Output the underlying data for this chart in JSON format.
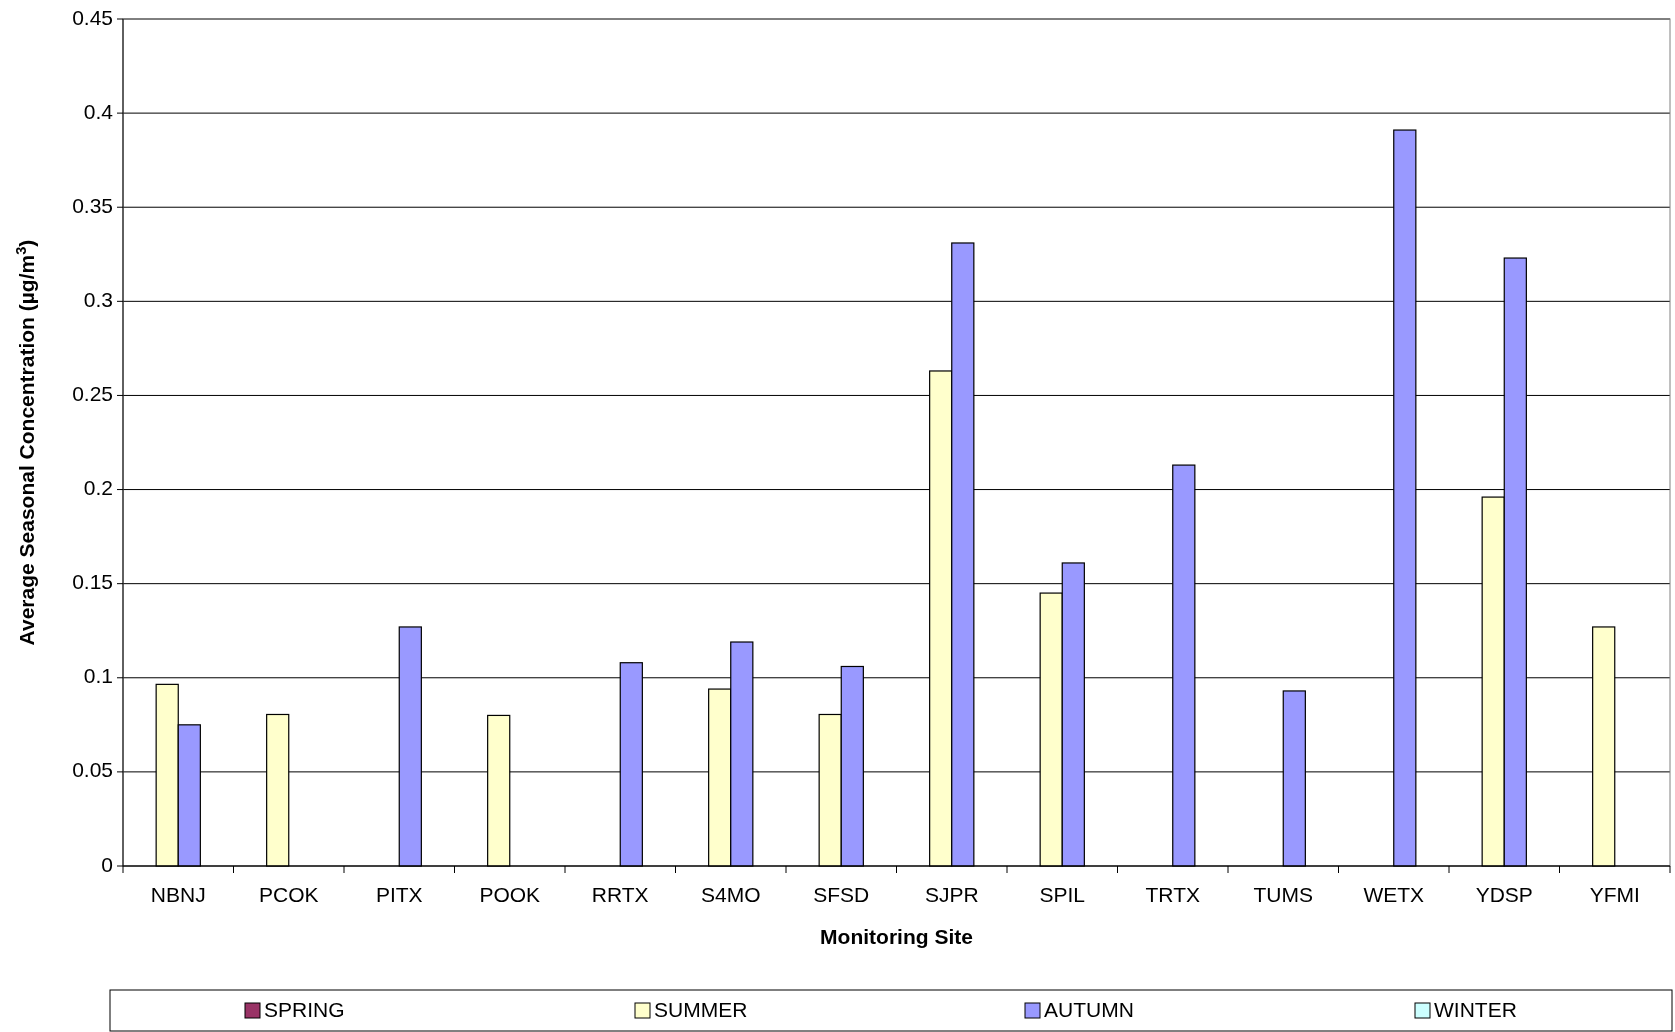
{
  "chart_data": {
    "type": "bar",
    "xlabel": "Monitoring Site",
    "ylabel": "Average Seasonal Concentration (µg/m$^{3}$)",
    "categories": [
      "NBNJ",
      "PCOK",
      "PITX",
      "POOK",
      "RRTX",
      "S4MO",
      "SFSD",
      "SJPR",
      "SPIL",
      "TRTX",
      "TUMS",
      "WETX",
      "YDSP",
      "YFMI"
    ],
    "series": [
      {
        "name": "SPRING",
        "color": "#993366",
        "values": [
          null,
          null,
          null,
          null,
          null,
          null,
          null,
          null,
          null,
          null,
          null,
          null,
          null,
          null
        ]
      },
      {
        "name": "SUMMER",
        "color": "#ffffcc",
        "values": [
          0.0965,
          0.0805,
          null,
          0.08,
          null,
          0.094,
          0.0805,
          0.263,
          0.145,
          null,
          null,
          null,
          0.196,
          0.127
        ]
      },
      {
        "name": "AUTUMN",
        "color": "#9999ff",
        "values": [
          0.075,
          null,
          0.127,
          null,
          0.108,
          0.119,
          0.106,
          0.331,
          0.161,
          0.213,
          0.093,
          0.391,
          0.323,
          null
        ]
      },
      {
        "name": "WINTER",
        "color": "#ccffff",
        "values": [
          null,
          null,
          null,
          null,
          null,
          null,
          null,
          null,
          null,
          null,
          null,
          null,
          null,
          null
        ]
      }
    ],
    "ylim": [
      0,
      0.45
    ],
    "yticks": [
      0,
      0.05,
      0.1,
      0.15,
      0.2,
      0.25,
      0.3,
      0.35,
      0.4,
      0.45
    ],
    "grid": "y",
    "legend": "bottom"
  }
}
